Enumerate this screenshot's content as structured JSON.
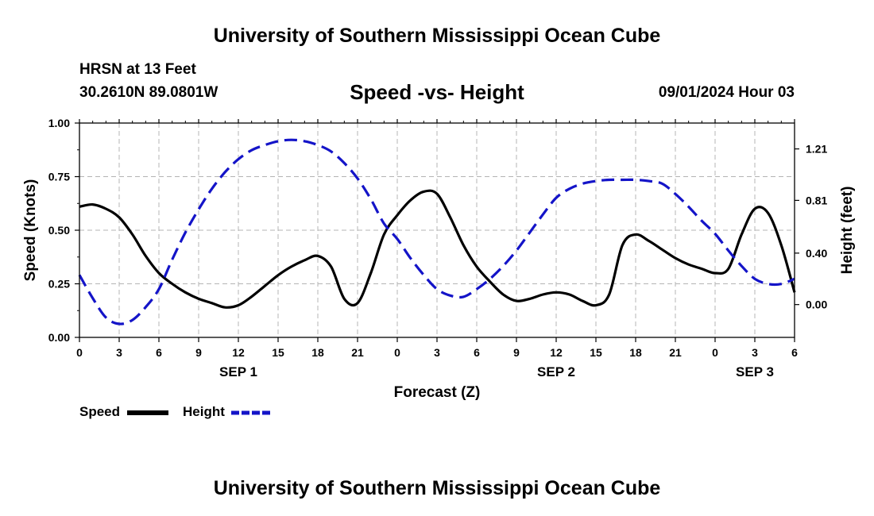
{
  "title": "University of Southern Mississippi Ocean Cube",
  "footer_title": "University of Southern Mississippi Ocean Cube",
  "station": "HRSN at 13 Feet",
  "coordinates": "30.2610N  89.0801W",
  "subtitle": "Speed -vs- Height",
  "datetime": "09/01/2024 Hour 03",
  "legend": {
    "speed_label": "Speed",
    "height_label": "Height"
  },
  "chart_data": {
    "type": "line",
    "title": "Speed -vs- Height",
    "xlabel": "Forecast (Z)",
    "ylabel_left": "Speed (Knots)",
    "ylabel_right": "Height (feet)",
    "x_range": [
      0,
      54
    ],
    "ylim_left": [
      0,
      1.0
    ],
    "ylim_right": [
      -0.255,
      1.411
    ],
    "x_ticks": [
      {
        "x": 0,
        "label": "0"
      },
      {
        "x": 3,
        "label": "3"
      },
      {
        "x": 6,
        "label": "6"
      },
      {
        "x": 9,
        "label": "9"
      },
      {
        "x": 12,
        "label": "12"
      },
      {
        "x": 15,
        "label": "15"
      },
      {
        "x": 18,
        "label": "18"
      },
      {
        "x": 21,
        "label": "21"
      },
      {
        "x": 24,
        "label": "0"
      },
      {
        "x": 27,
        "label": "3"
      },
      {
        "x": 30,
        "label": "6"
      },
      {
        "x": 33,
        "label": "9"
      },
      {
        "x": 36,
        "label": "12"
      },
      {
        "x": 39,
        "label": "15"
      },
      {
        "x": 42,
        "label": "18"
      },
      {
        "x": 45,
        "label": "21"
      },
      {
        "x": 48,
        "label": "0"
      },
      {
        "x": 51,
        "label": "3"
      },
      {
        "x": 54,
        "label": "6"
      }
    ],
    "day_labels": [
      {
        "x": 12,
        "label": "SEP 1"
      },
      {
        "x": 36,
        "label": "SEP 2"
      },
      {
        "x": 51,
        "label": "SEP 3"
      }
    ],
    "y_ticks_left": [
      {
        "v": 0.0,
        "label": "0.00"
      },
      {
        "v": 0.25,
        "label": "0.25"
      },
      {
        "v": 0.5,
        "label": "0.50"
      },
      {
        "v": 0.75,
        "label": "0.75"
      },
      {
        "v": 1.0,
        "label": "1.00"
      }
    ],
    "y_ticks_right": [
      {
        "v": 0.0,
        "label": "0.00"
      },
      {
        "v": 0.4,
        "label": "0.40"
      },
      {
        "v": 0.81,
        "label": "0.81"
      },
      {
        "v": 1.21,
        "label": "1.21"
      }
    ],
    "grid": true,
    "series": [
      {
        "name": "Speed",
        "axis": "left",
        "color": "#000000",
        "style": "solid",
        "x": [
          0,
          1,
          2,
          3,
          4,
          5,
          6,
          7,
          8,
          9,
          10,
          11,
          12,
          13,
          14,
          15,
          16,
          17,
          18,
          19,
          20,
          21,
          22,
          23,
          24,
          25,
          26,
          27,
          28,
          29,
          30,
          31,
          32,
          33,
          34,
          35,
          36,
          37,
          38,
          39,
          40,
          41,
          42,
          43,
          44,
          45,
          46,
          47,
          48,
          49,
          50,
          51,
          52,
          53,
          54
        ],
        "values": [
          0.61,
          0.62,
          0.6,
          0.56,
          0.48,
          0.38,
          0.3,
          0.25,
          0.21,
          0.18,
          0.16,
          0.14,
          0.15,
          0.19,
          0.24,
          0.29,
          0.33,
          0.36,
          0.38,
          0.33,
          0.18,
          0.16,
          0.3,
          0.48,
          0.57,
          0.64,
          0.68,
          0.67,
          0.56,
          0.43,
          0.33,
          0.26,
          0.2,
          0.17,
          0.18,
          0.2,
          0.21,
          0.2,
          0.17,
          0.15,
          0.2,
          0.43,
          0.48,
          0.45,
          0.41,
          0.37,
          0.34,
          0.32,
          0.3,
          0.32,
          0.48,
          0.6,
          0.58,
          0.43,
          0.21
        ]
      },
      {
        "name": "Height",
        "axis": "right",
        "color": "#1414c8",
        "style": "dashed",
        "x": [
          0,
          1,
          2,
          3,
          4,
          5,
          6,
          7,
          8,
          9,
          10,
          11,
          12,
          13,
          14,
          15,
          16,
          17,
          18,
          19,
          20,
          21,
          22,
          23,
          24,
          25,
          26,
          27,
          28,
          29,
          30,
          31,
          32,
          33,
          34,
          35,
          36,
          37,
          38,
          39,
          40,
          41,
          42,
          43,
          44,
          45,
          46,
          47,
          48,
          49,
          50,
          51,
          52,
          53,
          54
        ],
        "values": [
          0.23,
          0.05,
          -0.1,
          -0.15,
          -0.12,
          -0.02,
          0.12,
          0.35,
          0.56,
          0.74,
          0.9,
          1.03,
          1.13,
          1.2,
          1.24,
          1.27,
          1.28,
          1.27,
          1.24,
          1.19,
          1.1,
          0.98,
          0.82,
          0.63,
          0.51,
          0.36,
          0.23,
          0.12,
          0.07,
          0.06,
          0.12,
          0.2,
          0.3,
          0.42,
          0.56,
          0.7,
          0.83,
          0.9,
          0.94,
          0.96,
          0.97,
          0.97,
          0.97,
          0.96,
          0.94,
          0.86,
          0.76,
          0.65,
          0.55,
          0.42,
          0.3,
          0.2,
          0.16,
          0.16,
          0.2
        ]
      }
    ]
  }
}
